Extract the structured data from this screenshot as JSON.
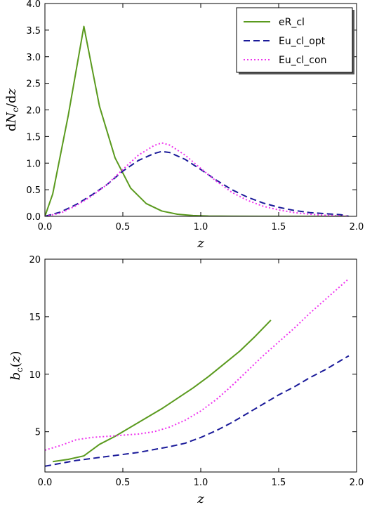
{
  "chart_data": [
    {
      "type": "line",
      "xlabel": "z",
      "ylabel": "dN_c/dz",
      "xlim": [
        0.0,
        2.0
      ],
      "ylim": [
        0.0,
        4.0
      ],
      "xticks": [
        "0.0",
        "0.5",
        "1.0",
        "1.5",
        "2.0"
      ],
      "yticks": [
        "0.0",
        "0.5",
        "1.0",
        "1.5",
        "2.0",
        "2.5",
        "3.0",
        "3.5",
        "4.0"
      ],
      "grid": false,
      "legend_position": "top-right",
      "series": [
        {
          "name": "eR_cl",
          "color": "#5a9a1e",
          "style": "solid",
          "x": [
            0.0,
            0.05,
            0.15,
            0.25,
            0.35,
            0.45,
            0.55,
            0.65,
            0.75,
            0.85,
            0.95,
            1.05,
            1.2,
            1.4,
            1.6,
            1.8,
            1.95
          ],
          "y": [
            0.0,
            0.42,
            1.9,
            3.57,
            2.07,
            1.1,
            0.53,
            0.24,
            0.1,
            0.04,
            0.015,
            0.005,
            0.001,
            0.0,
            0.0,
            0.0,
            0.0
          ]
        },
        {
          "name": "Eu_cl_opt",
          "color": "#1a1a99",
          "style": "dashed",
          "x": [
            0.0,
            0.1,
            0.2,
            0.3,
            0.4,
            0.5,
            0.6,
            0.7,
            0.75,
            0.8,
            0.9,
            1.0,
            1.1,
            1.2,
            1.3,
            1.4,
            1.5,
            1.6,
            1.7,
            1.8,
            1.9,
            1.95
          ],
          "y": [
            0.0,
            0.08,
            0.22,
            0.4,
            0.6,
            0.85,
            1.05,
            1.18,
            1.22,
            1.2,
            1.07,
            0.88,
            0.68,
            0.5,
            0.36,
            0.25,
            0.17,
            0.11,
            0.07,
            0.05,
            0.03,
            0.0
          ]
        },
        {
          "name": "Eu_cl_con",
          "color": "#ee33ee",
          "style": "dotted",
          "x": [
            0.0,
            0.1,
            0.2,
            0.3,
            0.4,
            0.5,
            0.6,
            0.7,
            0.75,
            0.8,
            0.9,
            1.0,
            1.1,
            1.2,
            1.3,
            1.4,
            1.5,
            1.6,
            1.7,
            1.8,
            1.9,
            1.95
          ],
          "y": [
            0.0,
            0.06,
            0.2,
            0.38,
            0.6,
            0.88,
            1.15,
            1.33,
            1.38,
            1.34,
            1.15,
            0.9,
            0.66,
            0.45,
            0.3,
            0.19,
            0.12,
            0.07,
            0.04,
            0.02,
            0.01,
            0.0
          ]
        }
      ]
    },
    {
      "type": "line",
      "xlabel": "z",
      "ylabel": "b_c(z)",
      "xlim": [
        0.0,
        2.0
      ],
      "ylim": [
        1.5,
        20.0
      ],
      "xticks": [
        "0.0",
        "0.5",
        "1.0",
        "1.5",
        "2.0"
      ],
      "yticks": [
        "5",
        "10",
        "15",
        "20"
      ],
      "grid": false,
      "series": [
        {
          "name": "eR_cl",
          "color": "#5a9a1e",
          "style": "solid",
          "x": [
            0.05,
            0.15,
            0.25,
            0.35,
            0.45,
            0.55,
            0.65,
            0.75,
            0.85,
            0.95,
            1.05,
            1.15,
            1.25,
            1.35,
            1.45
          ],
          "y": [
            2.4,
            2.6,
            2.9,
            3.9,
            4.6,
            5.4,
            6.2,
            7.0,
            7.9,
            8.8,
            9.8,
            10.9,
            12.0,
            13.3,
            14.7
          ]
        },
        {
          "name": "Eu_cl_opt",
          "color": "#1a1a99",
          "style": "dashed",
          "x": [
            0.0,
            0.2,
            0.4,
            0.6,
            0.8,
            0.9,
            1.0,
            1.1,
            1.2,
            1.3,
            1.4,
            1.5,
            1.6,
            1.7,
            1.8,
            1.9,
            1.95
          ],
          "y": [
            2.0,
            2.5,
            2.85,
            3.2,
            3.7,
            4.0,
            4.5,
            5.1,
            5.8,
            6.6,
            7.4,
            8.2,
            8.9,
            9.7,
            10.4,
            11.2,
            11.6
          ]
        },
        {
          "name": "Eu_cl_con",
          "color": "#ee33ee",
          "style": "dotted",
          "x": [
            0.0,
            0.1,
            0.2,
            0.3,
            0.4,
            0.5,
            0.6,
            0.7,
            0.8,
            0.9,
            1.0,
            1.1,
            1.2,
            1.3,
            1.4,
            1.5,
            1.6,
            1.7,
            1.8,
            1.9,
            1.95
          ],
          "y": [
            3.4,
            3.8,
            4.3,
            4.5,
            4.6,
            4.7,
            4.8,
            5.0,
            5.4,
            6.0,
            6.8,
            7.8,
            9.0,
            10.3,
            11.6,
            12.8,
            14.0,
            15.3,
            16.5,
            17.7,
            18.3
          ]
        }
      ]
    }
  ]
}
